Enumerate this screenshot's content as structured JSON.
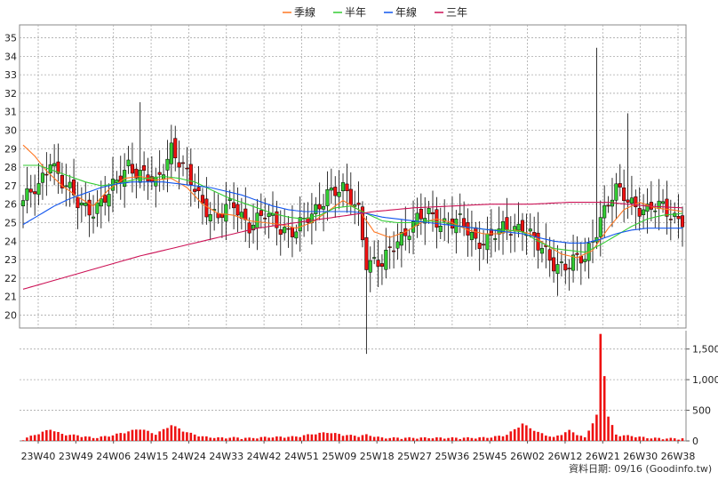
{
  "colors": {
    "up": "#33cc33",
    "down": "#ee1111",
    "ma_quarter": "#ff7722",
    "ma_half": "#33cc33",
    "ma_year": "#1155ee",
    "ma_three": "#cc1155",
    "volume": "#ee1111",
    "grid": "#aaaaaa"
  },
  "legend": [
    {
      "label": "季線",
      "color_key": "ma_quarter"
    },
    {
      "label": "半年",
      "color_key": "ma_half"
    },
    {
      "label": "年線",
      "color_key": "ma_year"
    },
    {
      "label": "三年",
      "color_key": "ma_three"
    }
  ],
  "footer": "資料日期: 09/16 (Goodinfo.tw)",
  "chart_data": {
    "type": "candlestick",
    "x_ticks": [
      "23W40",
      "23W49",
      "24W06",
      "24W15",
      "24W24",
      "24W33",
      "24W42",
      "24W51",
      "25W09",
      "25W18",
      "25W27",
      "25W36",
      "25W45",
      "26W02",
      "26W12",
      "26W21",
      "26W30",
      "26W38"
    ],
    "price_axis": {
      "ylim": [
        19.3,
        35.7
      ],
      "ticks": [
        20,
        21,
        22,
        23,
        24,
        25,
        26,
        27,
        28,
        29,
        30,
        31,
        32,
        33,
        34,
        35
      ],
      "side": "left"
    },
    "volume_axis": {
      "ylim": [
        0,
        1800
      ],
      "ticks": [
        0,
        500,
        1000,
        1500
      ],
      "tick_labels": [
        "0",
        "500",
        "1,000",
        "1,500"
      ],
      "side": "right"
    },
    "series_anchors": {
      "close": [
        [
          0,
          26.2
        ],
        [
          4,
          26.8
        ],
        [
          7,
          28.6
        ],
        [
          10,
          27.2
        ],
        [
          14,
          26.0
        ],
        [
          18,
          25.8
        ],
        [
          22,
          26.4
        ],
        [
          27,
          28.3
        ],
        [
          30,
          27.6
        ],
        [
          34,
          27.0
        ],
        [
          38,
          29.2
        ],
        [
          42,
          27.4
        ],
        [
          46,
          26.1
        ],
        [
          50,
          25.3
        ],
        [
          54,
          25.9
        ],
        [
          58,
          25.0
        ],
        [
          62,
          25.3
        ],
        [
          66,
          24.8
        ],
        [
          70,
          24.6
        ],
        [
          74,
          25.3
        ],
        [
          78,
          26.8
        ],
        [
          82,
          26.6
        ],
        [
          86,
          25.8
        ],
        [
          88,
          23.0
        ],
        [
          92,
          22.6
        ],
        [
          96,
          24.2
        ],
        [
          100,
          24.9
        ],
        [
          104,
          25.4
        ],
        [
          108,
          25.1
        ],
        [
          112,
          24.9
        ],
        [
          116,
          24.1
        ],
        [
          120,
          24.2
        ],
        [
          124,
          24.6
        ],
        [
          128,
          25.0
        ],
        [
          132,
          23.6
        ],
        [
          136,
          22.9
        ],
        [
          140,
          22.7
        ],
        [
          144,
          23.0
        ],
        [
          148,
          25.4
        ],
        [
          152,
          26.6
        ],
        [
          156,
          26.2
        ],
        [
          160,
          25.6
        ],
        [
          164,
          25.8
        ],
        [
          169,
          25.2
        ]
      ],
      "volume": [
        [
          0,
          10
        ],
        [
          7,
          170
        ],
        [
          10,
          90
        ],
        [
          14,
          70
        ],
        [
          18,
          30
        ],
        [
          22,
          60
        ],
        [
          26,
          120
        ],
        [
          30,
          180
        ],
        [
          34,
          90
        ],
        [
          38,
          240
        ],
        [
          42,
          120
        ],
        [
          46,
          50
        ],
        [
          50,
          30
        ],
        [
          54,
          35
        ],
        [
          58,
          25
        ],
        [
          62,
          40
        ],
        [
          66,
          45
        ],
        [
          70,
          50
        ],
        [
          74,
          90
        ],
        [
          78,
          120
        ],
        [
          82,
          80
        ],
        [
          86,
          60
        ],
        [
          88,
          80
        ],
        [
          92,
          30
        ],
        [
          96,
          30
        ],
        [
          100,
          30
        ],
        [
          104,
          30
        ],
        [
          108,
          30
        ],
        [
          112,
          30
        ],
        [
          116,
          30
        ],
        [
          120,
          40
        ],
        [
          124,
          80
        ],
        [
          128,
          260
        ],
        [
          132,
          120
        ],
        [
          136,
          35
        ],
        [
          140,
          150
        ],
        [
          144,
          30
        ],
        [
          147,
          400
        ],
        [
          148,
          1720
        ],
        [
          150,
          380
        ],
        [
          152,
          80
        ],
        [
          156,
          60
        ],
        [
          160,
          30
        ],
        [
          164,
          20
        ],
        [
          169,
          20
        ]
      ],
      "ma_quarter": [
        [
          0,
          29.2
        ],
        [
          3,
          28.6
        ],
        [
          6,
          27.8
        ],
        [
          10,
          27.0
        ],
        [
          14,
          26.4
        ],
        [
          18,
          25.9
        ],
        [
          22,
          26.8
        ],
        [
          26,
          27.4
        ],
        [
          30,
          27.5
        ],
        [
          34,
          27.3
        ],
        [
          38,
          27.4
        ],
        [
          42,
          26.9
        ],
        [
          46,
          26.0
        ],
        [
          50,
          25.5
        ],
        [
          54,
          25.4
        ],
        [
          58,
          25.1
        ],
        [
          62,
          25.0
        ],
        [
          66,
          24.9
        ],
        [
          70,
          24.7
        ],
        [
          74,
          25.0
        ],
        [
          78,
          25.6
        ],
        [
          82,
          26.2
        ],
        [
          86,
          25.7
        ],
        [
          90,
          24.5
        ],
        [
          94,
          24.2
        ],
        [
          98,
          24.5
        ],
        [
          102,
          25.0
        ],
        [
          106,
          25.2
        ],
        [
          110,
          25.0
        ],
        [
          114,
          24.6
        ],
        [
          118,
          24.4
        ],
        [
          122,
          24.4
        ],
        [
          126,
          24.6
        ],
        [
          130,
          24.4
        ],
        [
          134,
          23.8
        ],
        [
          138,
          23.3
        ],
        [
          142,
          23.1
        ],
        [
          146,
          23.5
        ],
        [
          150,
          24.7
        ],
        [
          154,
          25.7
        ],
        [
          158,
          26.1
        ],
        [
          162,
          25.8
        ],
        [
          166,
          25.7
        ],
        [
          169,
          25.6
        ]
      ],
      "ma_half": [
        [
          0,
          28.1
        ],
        [
          4,
          28.1
        ],
        [
          8,
          27.8
        ],
        [
          12,
          27.5
        ],
        [
          16,
          27.2
        ],
        [
          20,
          27.0
        ],
        [
          24,
          27.1
        ],
        [
          28,
          27.3
        ],
        [
          32,
          27.4
        ],
        [
          36,
          27.5
        ],
        [
          40,
          27.4
        ],
        [
          44,
          27.2
        ],
        [
          48,
          26.8
        ],
        [
          52,
          26.4
        ],
        [
          56,
          26.1
        ],
        [
          60,
          25.8
        ],
        [
          64,
          25.5
        ],
        [
          68,
          25.3
        ],
        [
          72,
          25.2
        ],
        [
          76,
          25.4
        ],
        [
          80,
          25.8
        ],
        [
          84,
          25.9
        ],
        [
          88,
          25.5
        ],
        [
          92,
          25.1
        ],
        [
          96,
          25.0
        ],
        [
          100,
          25.0
        ],
        [
          104,
          25.1
        ],
        [
          108,
          25.0
        ],
        [
          112,
          24.8
        ],
        [
          116,
          24.7
        ],
        [
          120,
          24.6
        ],
        [
          124,
          24.6
        ],
        [
          128,
          24.5
        ],
        [
          132,
          24.0
        ],
        [
          136,
          23.6
        ],
        [
          140,
          23.5
        ],
        [
          144,
          23.4
        ],
        [
          148,
          23.8
        ],
        [
          152,
          24.3
        ],
        [
          156,
          24.8
        ],
        [
          160,
          25.2
        ],
        [
          164,
          25.4
        ],
        [
          169,
          25.5
        ]
      ],
      "ma_year": [
        [
          0,
          24.9
        ],
        [
          4,
          25.4
        ],
        [
          8,
          25.9
        ],
        [
          12,
          26.3
        ],
        [
          16,
          26.6
        ],
        [
          20,
          26.9
        ],
        [
          24,
          27.1
        ],
        [
          28,
          27.2
        ],
        [
          32,
          27.2
        ],
        [
          36,
          27.2
        ],
        [
          40,
          27.1
        ],
        [
          44,
          27.0
        ],
        [
          48,
          26.9
        ],
        [
          52,
          26.7
        ],
        [
          56,
          26.5
        ],
        [
          60,
          26.2
        ],
        [
          64,
          25.9
        ],
        [
          68,
          25.7
        ],
        [
          72,
          25.6
        ],
        [
          76,
          25.6
        ],
        [
          80,
          25.6
        ],
        [
          84,
          25.6
        ],
        [
          88,
          25.5
        ],
        [
          92,
          25.3
        ],
        [
          96,
          25.2
        ],
        [
          100,
          25.1
        ],
        [
          104,
          25.0
        ],
        [
          108,
          24.9
        ],
        [
          112,
          24.8
        ],
        [
          116,
          24.7
        ],
        [
          120,
          24.6
        ],
        [
          124,
          24.5
        ],
        [
          128,
          24.4
        ],
        [
          132,
          24.2
        ],
        [
          136,
          24.0
        ],
        [
          140,
          23.9
        ],
        [
          144,
          23.9
        ],
        [
          148,
          24.1
        ],
        [
          152,
          24.4
        ],
        [
          156,
          24.6
        ],
        [
          160,
          24.7
        ],
        [
          164,
          24.7
        ],
        [
          169,
          24.7
        ]
      ],
      "ma_three": [
        [
          0,
          21.4
        ],
        [
          10,
          22.0
        ],
        [
          20,
          22.6
        ],
        [
          30,
          23.2
        ],
        [
          40,
          23.7
        ],
        [
          50,
          24.2
        ],
        [
          60,
          24.7
        ],
        [
          70,
          25.0
        ],
        [
          80,
          25.3
        ],
        [
          90,
          25.6
        ],
        [
          100,
          25.8
        ],
        [
          110,
          25.9
        ],
        [
          120,
          26.0
        ],
        [
          130,
          26.0
        ],
        [
          140,
          26.1
        ],
        [
          150,
          26.1
        ],
        [
          160,
          25.9
        ],
        [
          169,
          25.8
        ]
      ]
    }
  }
}
